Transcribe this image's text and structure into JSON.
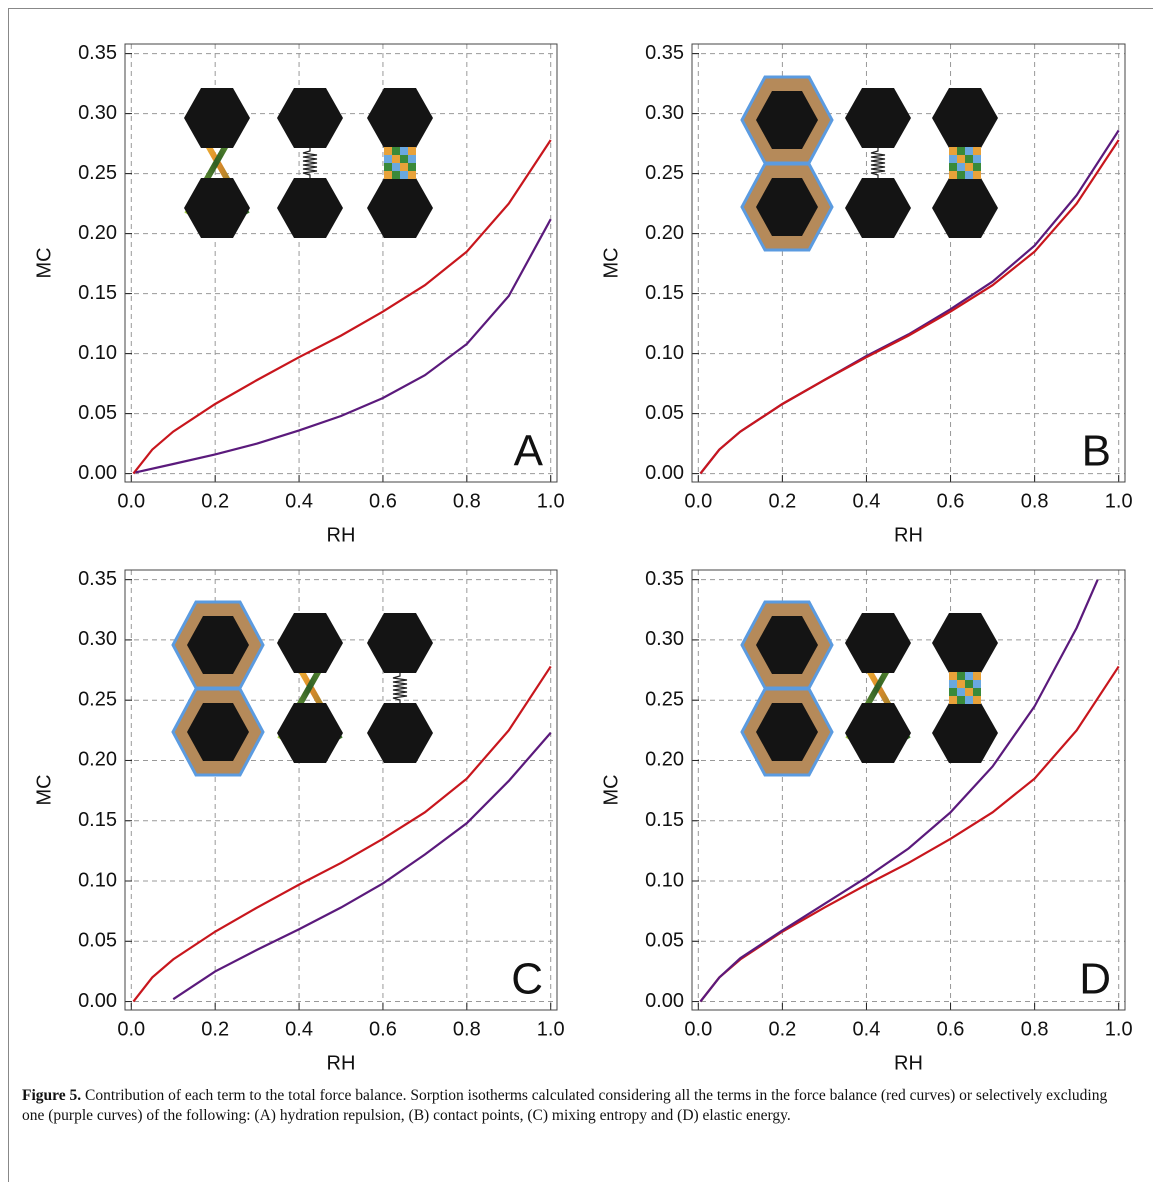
{
  "chart_data": [
    {
      "type": "line",
      "label": "A",
      "x_label": "RH",
      "y_label": "MC",
      "xlim": [
        -0.015,
        1.015
      ],
      "ylim": [
        -0.007,
        0.358
      ],
      "grid": true,
      "xticks": [
        {
          "value": 0,
          "label": "0.0"
        },
        0.2,
        0.4,
        0.6,
        0.8,
        {
          "value": 1,
          "label": "1.0"
        }
      ],
      "yticks": [
        {
          "value": 0,
          "label": "0.00"
        },
        0.05,
        {
          "value": 0.1,
          "label": "0.10"
        },
        0.15,
        {
          "value": 0.2,
          "label": "0.20"
        },
        0.25,
        {
          "value": 0.3,
          "label": "0.30"
        },
        0.35
      ],
      "series": [
        {
          "color": "#c8161d",
          "x": [
            0.005,
            0.05,
            0.1,
            0.2,
            0.3,
            0.4,
            0.5,
            0.6,
            0.7,
            0.8,
            0.9,
            1.0
          ],
          "values": [
            0.0,
            0.02,
            0.035,
            0.058,
            0.078,
            0.097,
            0.115,
            0.135,
            0.157,
            0.185,
            0.225,
            0.278
          ]
        },
        {
          "color": "#5b1a7c",
          "x": [
            0.01,
            0.1,
            0.2,
            0.3,
            0.4,
            0.5,
            0.6,
            0.7,
            0.8,
            0.9,
            1.0
          ],
          "values": [
            0.001,
            0.008,
            0.016,
            0.025,
            0.036,
            0.048,
            0.063,
            0.082,
            0.108,
            0.148,
            0.212
          ]
        }
      ]
    },
    {
      "type": "line",
      "label": "B",
      "x_label": "RH",
      "y_label": "MC",
      "xlim": [
        -0.015,
        1.015
      ],
      "ylim": [
        -0.007,
        0.358
      ],
      "grid": true,
      "xticks": [
        {
          "value": 0,
          "label": "0.0"
        },
        0.2,
        0.4,
        0.6,
        0.8,
        {
          "value": 1,
          "label": "1.0"
        }
      ],
      "yticks": [
        {
          "value": 0,
          "label": "0.00"
        },
        0.05,
        {
          "value": 0.1,
          "label": "0.10"
        },
        0.15,
        {
          "value": 0.2,
          "label": "0.20"
        },
        0.25,
        {
          "value": 0.3,
          "label": "0.30"
        },
        0.35
      ],
      "series": [
        {
          "color": "#5b1a7c",
          "x": [
            0.005,
            0.05,
            0.1,
            0.2,
            0.3,
            0.4,
            0.5,
            0.6,
            0.7,
            0.8,
            0.9,
            1.0
          ],
          "values": [
            0.0,
            0.02,
            0.035,
            0.058,
            0.078,
            0.098,
            0.116,
            0.137,
            0.16,
            0.19,
            0.232,
            0.286
          ]
        },
        {
          "color": "#c8161d",
          "x": [
            0.005,
            0.05,
            0.1,
            0.2,
            0.3,
            0.4,
            0.5,
            0.6,
            0.7,
            0.8,
            0.9,
            1.0
          ],
          "values": [
            0.0,
            0.02,
            0.035,
            0.058,
            0.078,
            0.097,
            0.115,
            0.135,
            0.157,
            0.185,
            0.225,
            0.278
          ]
        }
      ]
    },
    {
      "type": "line",
      "label": "C",
      "x_label": "RH",
      "y_label": "MC",
      "xlim": [
        -0.015,
        1.015
      ],
      "ylim": [
        -0.007,
        0.358
      ],
      "grid": true,
      "xticks": [
        {
          "value": 0,
          "label": "0.0"
        },
        0.2,
        0.4,
        0.6,
        0.8,
        {
          "value": 1,
          "label": "1.0"
        }
      ],
      "yticks": [
        {
          "value": 0,
          "label": "0.00"
        },
        0.05,
        {
          "value": 0.1,
          "label": "0.10"
        },
        0.15,
        {
          "value": 0.2,
          "label": "0.20"
        },
        0.25,
        {
          "value": 0.3,
          "label": "0.30"
        },
        0.35
      ],
      "series": [
        {
          "color": "#c8161d",
          "x": [
            0.005,
            0.05,
            0.1,
            0.2,
            0.3,
            0.4,
            0.5,
            0.6,
            0.7,
            0.8,
            0.9,
            1.0
          ],
          "values": [
            0.0,
            0.02,
            0.035,
            0.058,
            0.078,
            0.097,
            0.115,
            0.135,
            0.157,
            0.185,
            0.225,
            0.278
          ]
        },
        {
          "color": "#5b1a7c",
          "x": [
            0.1,
            0.2,
            0.3,
            0.4,
            0.5,
            0.6,
            0.7,
            0.8,
            0.9,
            1.0
          ],
          "values": [
            0.002,
            0.025,
            0.043,
            0.06,
            0.078,
            0.098,
            0.122,
            0.148,
            0.183,
            0.223
          ]
        }
      ]
    },
    {
      "type": "line",
      "label": "D",
      "x_label": "RH",
      "y_label": "MC",
      "xlim": [
        -0.015,
        1.015
      ],
      "ylim": [
        -0.007,
        0.358
      ],
      "grid": true,
      "xticks": [
        {
          "value": 0,
          "label": "0.0"
        },
        0.2,
        0.4,
        0.6,
        0.8,
        {
          "value": 1,
          "label": "1.0"
        }
      ],
      "yticks": [
        {
          "value": 0,
          "label": "0.00"
        },
        0.05,
        {
          "value": 0.1,
          "label": "0.10"
        },
        0.15,
        {
          "value": 0.2,
          "label": "0.20"
        },
        0.25,
        {
          "value": 0.3,
          "label": "0.30"
        },
        0.35
      ],
      "series": [
        {
          "color": "#c8161d",
          "x": [
            0.005,
            0.05,
            0.1,
            0.2,
            0.3,
            0.4,
            0.5,
            0.6,
            0.7,
            0.8,
            0.9,
            1.0
          ],
          "values": [
            0.0,
            0.02,
            0.035,
            0.058,
            0.078,
            0.097,
            0.115,
            0.135,
            0.157,
            0.185,
            0.225,
            0.278
          ]
        },
        {
          "color": "#5b1a7c",
          "x": [
            0.005,
            0.05,
            0.1,
            0.2,
            0.3,
            0.4,
            0.5,
            0.6,
            0.7,
            0.8,
            0.9,
            0.95
          ],
          "values": [
            0.0,
            0.02,
            0.036,
            0.059,
            0.081,
            0.103,
            0.127,
            0.157,
            0.195,
            0.245,
            0.31,
            0.35
          ]
        }
      ]
    }
  ],
  "caption": {
    "label": "Figure 5.",
    "text": "Contribution of each term to the total force balance. Sorption isotherms calculated considering all the terms in the force balance (red curves) or selectively excluding one (purple curves) of the following: (A) hydration repulsion, (B) contact points, (C) mixing entropy and (D) elastic energy."
  }
}
